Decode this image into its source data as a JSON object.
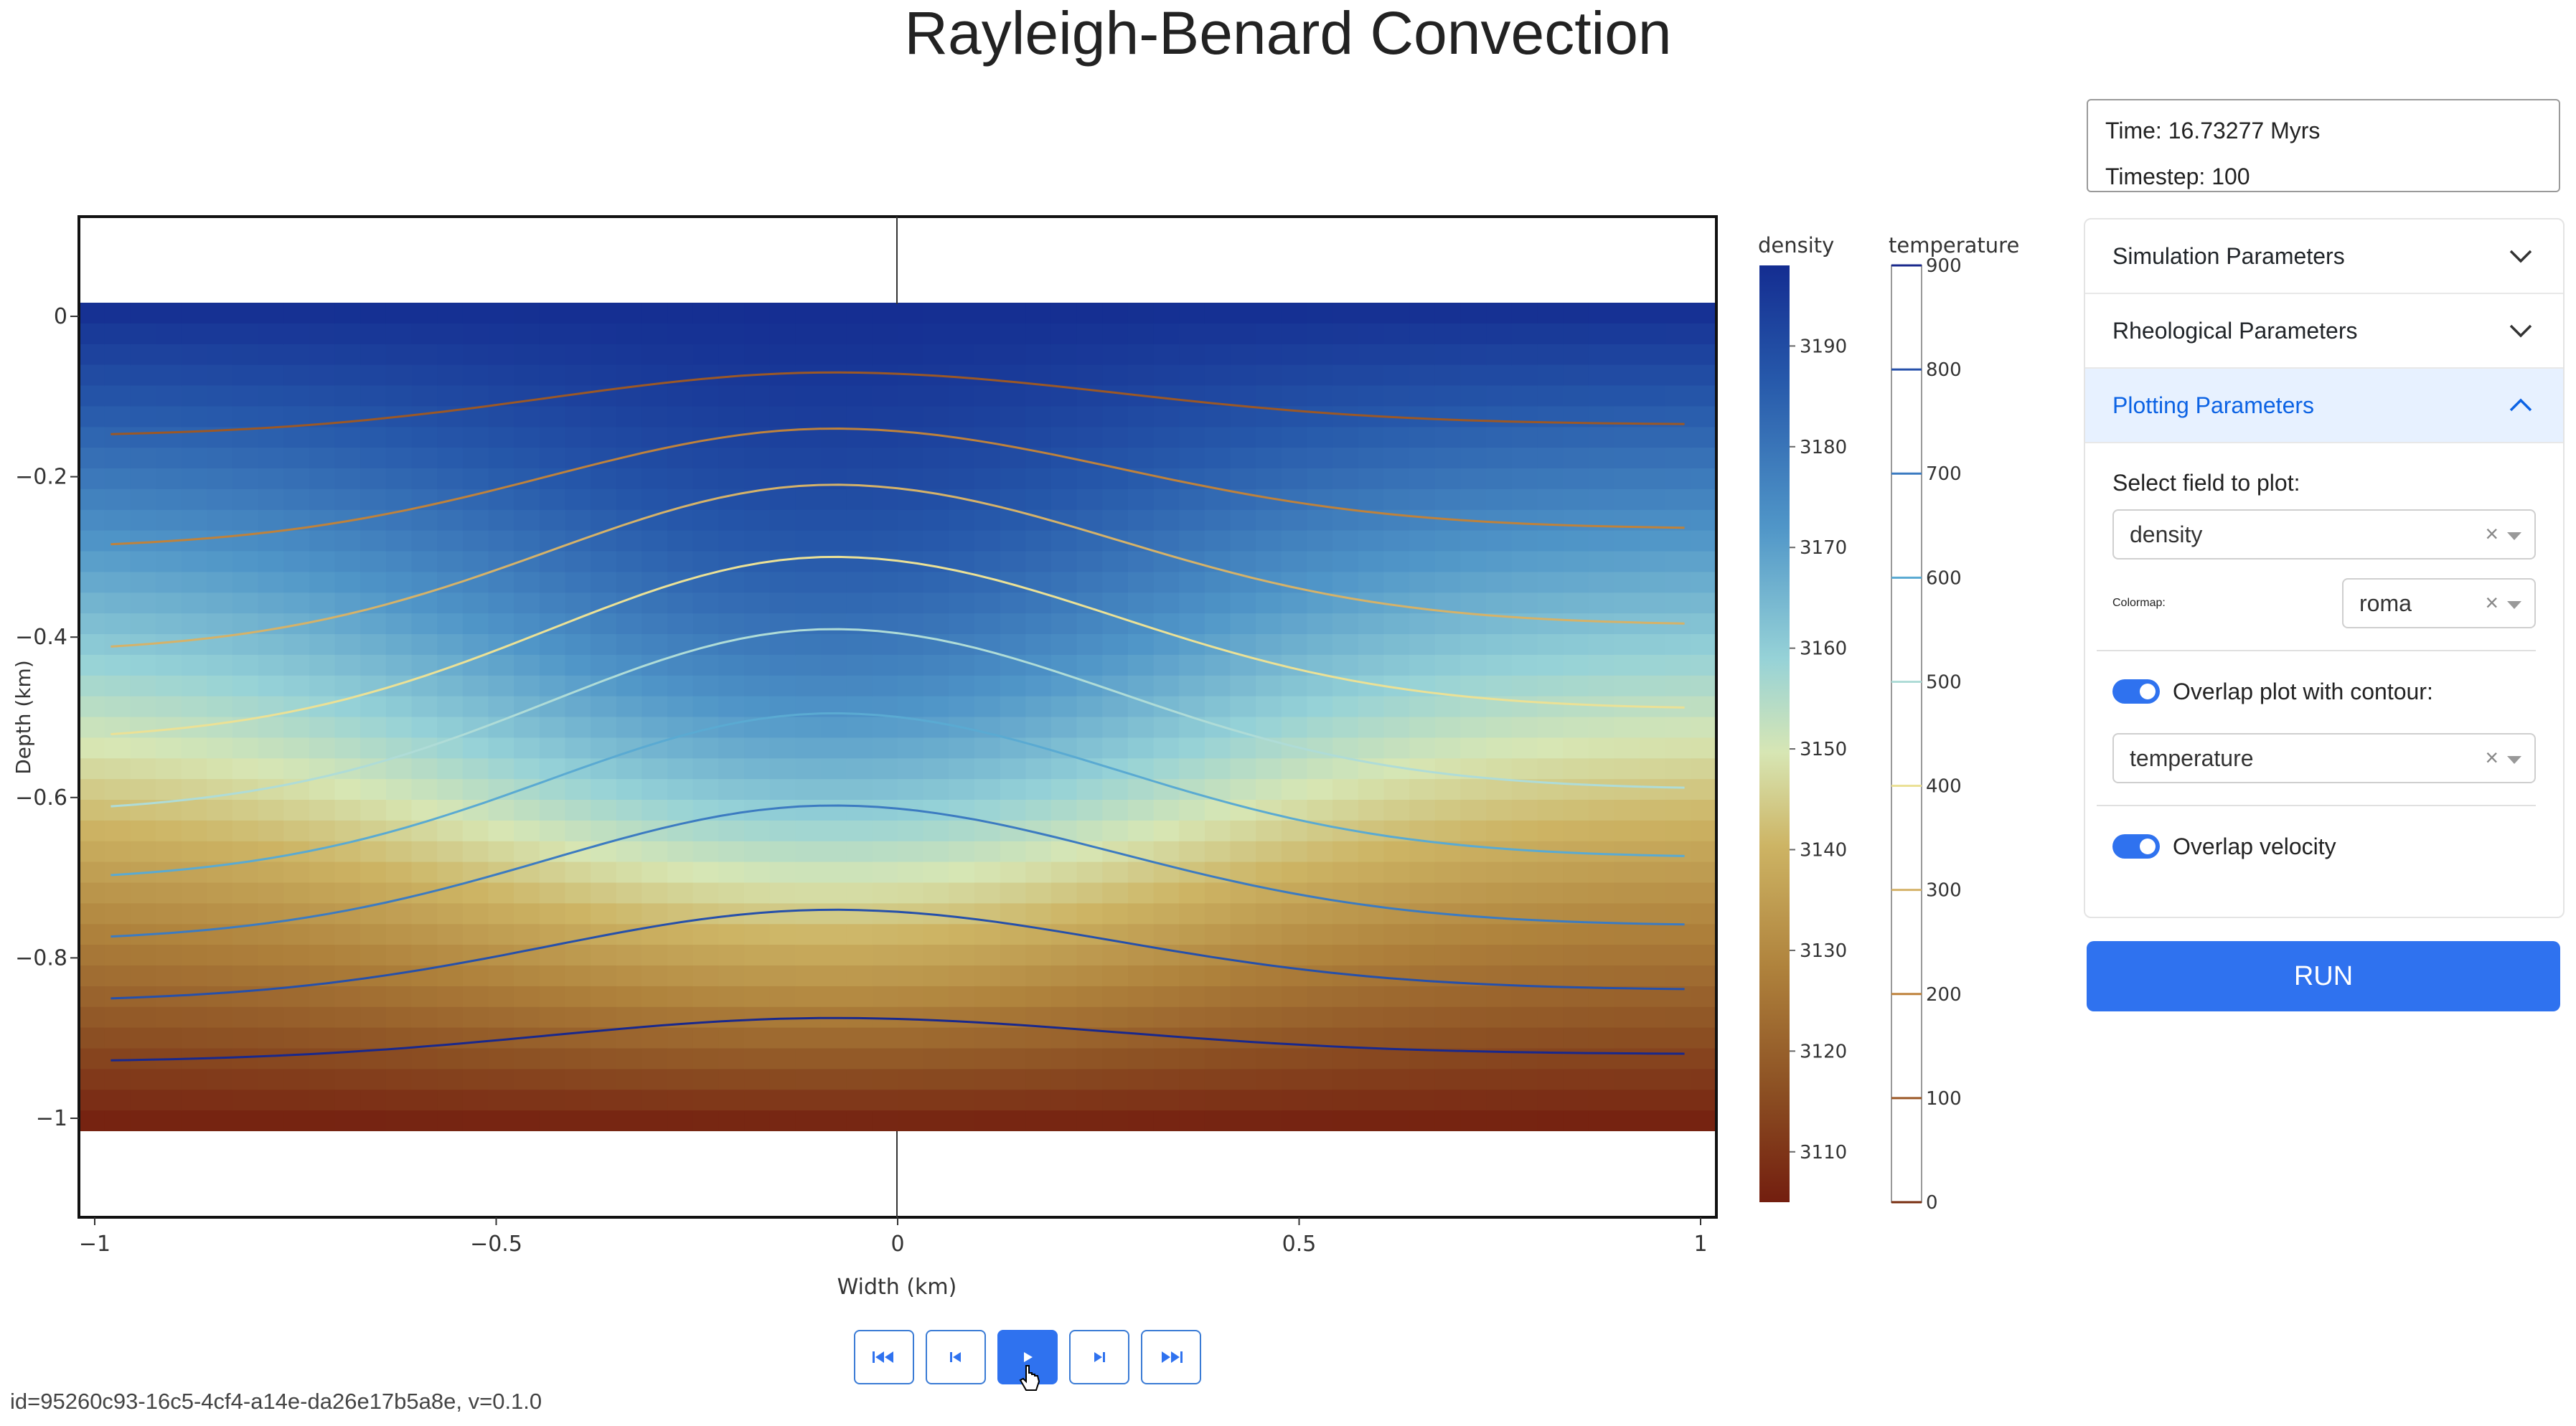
{
  "title": "Rayleigh-Benard Convection",
  "info": {
    "time": "Time: 16.73277 Myrs",
    "timestep": "Timestep: 100"
  },
  "accordion": {
    "simulation_label": "Simulation Parameters",
    "rheological_label": "Rheological Parameters",
    "plotting_label": "Plotting Parameters"
  },
  "plotting": {
    "field_label": "Select field to plot:",
    "field_value": "density",
    "colormap_label": "Colormap:",
    "colormap_value": "roma",
    "contour_toggle_label": "Overlap plot with contour:",
    "contour_value": "temperature",
    "velocity_toggle_label": "Overlap velocity",
    "clear_symbol": "×"
  },
  "run_label": "RUN",
  "footer": "id=95260c93-16c5-4cf4-a14e-da26e17b5a8e, v=0.1.0",
  "icons": [
    "chevron-down-icon",
    "chevron-up-icon",
    "first-frame-icon",
    "prev-frame-icon",
    "play-icon",
    "next-frame-icon",
    "last-frame-icon",
    "pointer-cursor-icon"
  ],
  "colors": {
    "accent": "#2f72ef",
    "active_tab_bg": "#e7f1ff",
    "active_tab_text": "#0c63e4"
  },
  "chart_data": {
    "type": "heatmap",
    "xlabel": "Width (km)",
    "ylabel": "Depth (km)",
    "xlim": [
      -1,
      1
    ],
    "ylim": [
      -1.1,
      0.1
    ],
    "x_ticks": [
      -1,
      -0.5,
      0,
      0.5,
      1
    ],
    "x_tick_labels": [
      "−1",
      "−0.5",
      "0",
      "0.5",
      "1"
    ],
    "y_ticks": [
      0,
      -0.2,
      -0.4,
      -0.6,
      -0.8,
      -1
    ],
    "y_tick_labels": [
      "0",
      "−0.2",
      "−0.4",
      "−0.6",
      "−0.8",
      "−1"
    ],
    "field": "density",
    "field_range": [
      3105,
      3198
    ],
    "colormap": "roma",
    "colorbar": {
      "title": "density",
      "ticks": [
        3110,
        3120,
        3130,
        3140,
        3150,
        3160,
        3170,
        3180,
        3190
      ],
      "tick_labels": [
        "3110",
        "3120",
        "3130",
        "3140",
        "3150",
        "3160",
        "3170",
        "3180",
        "3190"
      ]
    },
    "contour": {
      "field": "temperature",
      "colorbar_title": "temperature",
      "ticks": [
        0,
        100,
        200,
        300,
        400,
        500,
        600,
        700,
        800,
        900
      ],
      "tick_labels": [
        "0",
        "100",
        "200",
        "300",
        "400",
        "500",
        "600",
        "700",
        "800",
        "900"
      ],
      "levels": [
        {
          "temperature": 100,
          "depth_left": -0.15,
          "depth_peak": -0.07,
          "depth_right": -0.135
        },
        {
          "temperature": 200,
          "depth_left": -0.29,
          "depth_peak": -0.14,
          "depth_right": -0.265
        },
        {
          "temperature": 300,
          "depth_left": -0.42,
          "depth_peak": -0.21,
          "depth_right": -0.385
        },
        {
          "temperature": 400,
          "depth_left": -0.53,
          "depth_peak": -0.3,
          "depth_right": -0.49
        },
        {
          "temperature": 500,
          "depth_left": -0.62,
          "depth_peak": -0.39,
          "depth_right": -0.59
        },
        {
          "temperature": 600,
          "depth_left": -0.705,
          "depth_peak": -0.495,
          "depth_right": -0.675
        },
        {
          "temperature": 700,
          "depth_left": -0.78,
          "depth_peak": -0.61,
          "depth_right": -0.76
        },
        {
          "temperature": 800,
          "depth_left": -0.855,
          "depth_peak": -0.74,
          "depth_right": -0.84
        },
        {
          "temperature": 900,
          "depth_left": -0.93,
          "depth_peak": -0.875,
          "depth_right": -0.92
        }
      ],
      "peak_x": -0.08
    }
  }
}
